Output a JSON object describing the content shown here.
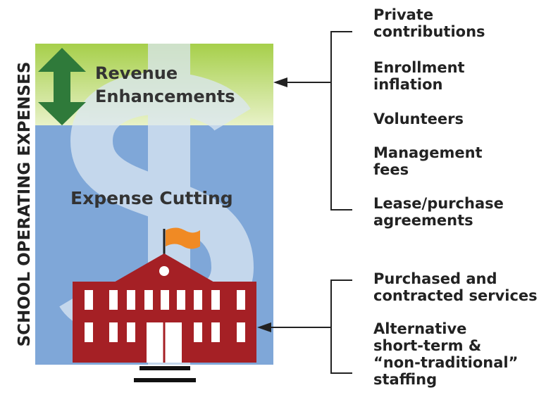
{
  "side_label": "SCHOOL OPERATING EXPENSES",
  "panel": {
    "top_label": [
      "Revenue",
      "Enhancements"
    ],
    "bottom_label": "Expense Cutting"
  },
  "groups": [
    {
      "items": [
        [
          "Private",
          "contributions"
        ],
        [
          "Enrollment",
          "inflation"
        ],
        [
          "Volunteers"
        ],
        [
          "Management",
          "fees"
        ],
        [
          "Lease/purchase",
          "agreements"
        ]
      ]
    },
    {
      "items": [
        [
          "Purchased and",
          "contracted services"
        ],
        [
          "Alternative",
          "short-term &",
          "“non-traditional”",
          "staffing"
        ]
      ]
    }
  ]
}
